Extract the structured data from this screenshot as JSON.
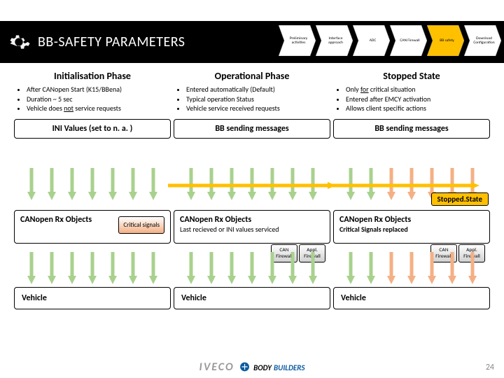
{
  "header": {
    "title": "BB-SAFETY PARAMETERS",
    "steps": [
      {
        "label": "Preliminary activities",
        "fill": "#ffffff"
      },
      {
        "label": "Interface approach",
        "fill": "#ffffff"
      },
      {
        "label": "ADC",
        "fill": "#ffffff"
      },
      {
        "label": "CAN Firewall",
        "fill": "#ffffff"
      },
      {
        "label": "BB safety",
        "fill": "#ffc000"
      },
      {
        "label": "Download Configuration",
        "fill": "#ffffff"
      }
    ]
  },
  "phases": {
    "init": {
      "title": "Initialisation Phase",
      "bullets": [
        "After CANopen Start (K15/BBena)",
        "Duration ~ 5 sec",
        "Vehicle does not service requests"
      ],
      "box": "INI Values (set to n. a. )"
    },
    "op": {
      "title": "Operational Phase",
      "bullets": [
        "Entered automatically (Default)",
        "Typical operation Status",
        "Vehicle service received requests"
      ],
      "box": "BB sending messages"
    },
    "stop": {
      "title": "Stopped State",
      "bullets": [
        "Only for critical situation",
        "Entered after EMCY activation",
        "Allows client specific actions"
      ],
      "box": "BB sending messages"
    }
  },
  "arrows": {
    "down_color": "#a9d18e",
    "crit_color": "#f4b084",
    "horiz_color": "#ffc000"
  },
  "stopped_badge": "Stopped.State",
  "objects": {
    "col1": {
      "title": "CANopen Rx Objects",
      "sub": "",
      "crit": "Critical signals"
    },
    "col2": {
      "title": "CANopen Rx Objects",
      "sub": "Last recieved or INI values serviced"
    },
    "col3": {
      "title": "CANopen Rx Objects",
      "sub": "Critical Signals replaced"
    },
    "fw": {
      "can": "CAN Firewall",
      "appl": "Appl. Firewall"
    }
  },
  "vehicle": "Vehicle",
  "footer": {
    "page": "24",
    "logo1": "IVECO",
    "logo2a": "BODY",
    "logo2b": "BUILDERS"
  }
}
